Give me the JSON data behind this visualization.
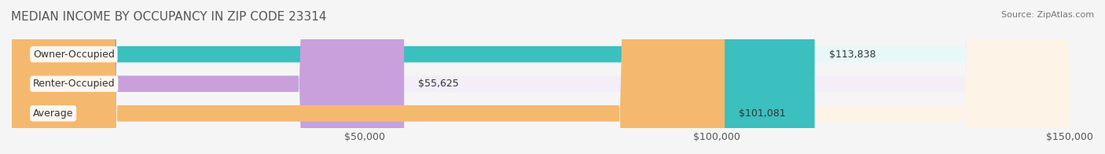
{
  "title": "MEDIAN INCOME BY OCCUPANCY IN ZIP CODE 23314",
  "source": "Source: ZipAtlas.com",
  "categories": [
    "Owner-Occupied",
    "Renter-Occupied",
    "Average"
  ],
  "values": [
    113838,
    55625,
    101081
  ],
  "labels": [
    "$113,838",
    "$55,625",
    "$101,081"
  ],
  "bar_colors": [
    "#3bbfbf",
    "#c9a0dc",
    "#f4b96e"
  ],
  "bar_bg_colors": [
    "#e8f8f8",
    "#f3eef7",
    "#fdf3e7"
  ],
  "xlim": [
    0,
    150000
  ],
  "xticks": [
    0,
    50000,
    100000,
    150000
  ],
  "xticklabels": [
    "",
    "$50,000",
    "$100,000",
    "$150,000"
  ],
  "background_color": "#f5f5f5",
  "bar_height": 0.55,
  "title_fontsize": 11,
  "label_fontsize": 9,
  "tick_fontsize": 9
}
